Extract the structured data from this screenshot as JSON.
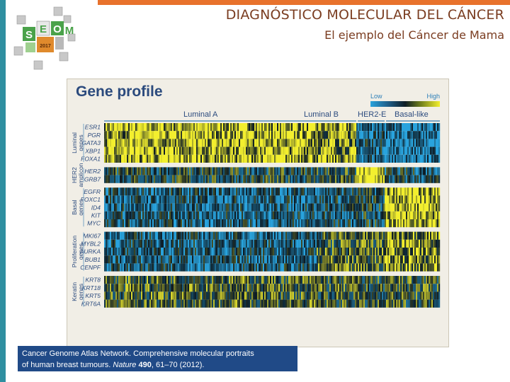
{
  "slide": {
    "title": "DIAGNÓSTICO MOLECULAR DEL CÁNCER",
    "subtitle": "El ejemplo del Cáncer de Mama",
    "logo": {
      "icon": "cube-logo-icon",
      "letters": [
        "S",
        "E",
        "O",
        "M"
      ],
      "year": "2017"
    },
    "colors": {
      "accent_bar": "#2f8fa0",
      "top_rule": "#e8722c",
      "title_text": "#7a3c20"
    }
  },
  "figure": {
    "title": "Gene profile",
    "legend": {
      "low": "Low",
      "high": "High"
    },
    "subtypes": [
      {
        "name": "Luminal A"
      },
      {
        "name": "Luminal B"
      },
      {
        "name": "HER2-E"
      },
      {
        "name": "Basal-like"
      }
    ],
    "gene_groups": [
      {
        "label": "Luminal genes",
        "genes": [
          "ESR1",
          "PGR",
          "GATA3",
          "XBP1",
          "FOXA1"
        ]
      },
      {
        "label": "HER2 amplicon",
        "genes": [
          "HER2",
          "GRB7"
        ]
      },
      {
        "label": "Basal genes",
        "genes": [
          "EGFR",
          "FOXC1",
          "ID4",
          "KIT",
          "MYC"
        ]
      },
      {
        "label": "Proliferation genes",
        "genes": [
          "MKI67",
          "MYBL2",
          "AURKA",
          "BUB1",
          "CENPF"
        ]
      },
      {
        "label": "Keratin genes",
        "genes": [
          "KRT8",
          "KRT18",
          "KRT5",
          "KRT6A"
        ]
      }
    ],
    "colors": {
      "low": "#29a3dd",
      "mid": "#0d1c25",
      "high": "#f3ef2e",
      "text": "#2b4a7d"
    }
  },
  "citation": {
    "line1": "Cancer Genome Atlas Network. Comprehensive molecular portraits",
    "line2_prefix": "of human breast tumours. ",
    "journal": "Nature",
    "volume": "490",
    "pages_year": ", 61–70 (2012)."
  }
}
